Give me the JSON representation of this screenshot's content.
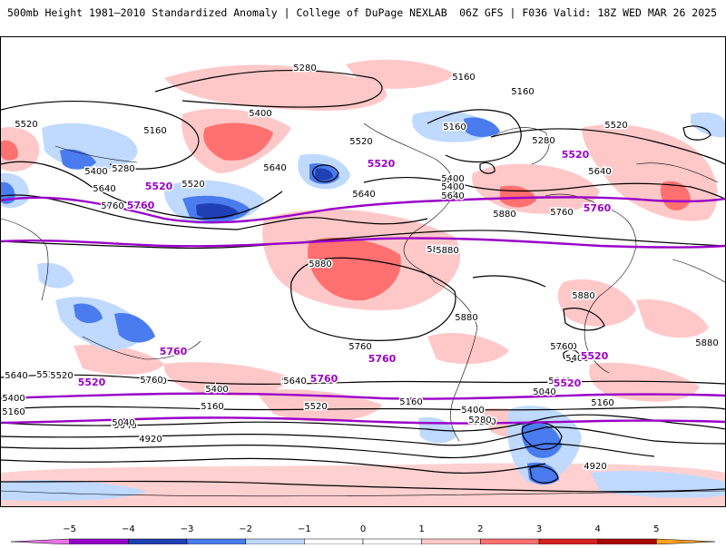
{
  "header": {
    "left": "500mb Height 1981–2010 Standardized Anomaly | College of DuPage NEXLAB",
    "right": "06Z GFS | F036 Valid: 18Z WED MAR 26 2025"
  },
  "colors": {
    "anom_neg5": "#e875e8",
    "anom_neg4": "#9400c8",
    "anom_neg3": "#1f3fb5",
    "anom_neg2": "#4a7cf0",
    "anom_neg1": "#bfd9ff",
    "anom_pos1": "#ffc8c8",
    "anom_pos2": "#ff7070",
    "anom_pos3": "#d72020",
    "anom_pos4": "#aa0000",
    "anom_pos5": "#ffa020",
    "contour": "#000000",
    "climo_contour": "#9a00c8"
  },
  "colorbar": {
    "ticks": [
      "−5",
      "−4",
      "−3",
      "−2",
      "−1",
      "0",
      "1",
      "2",
      "3",
      "4",
      "5"
    ]
  },
  "contour_labels": {
    "black": [
      "5280",
      "5160",
      "5160",
      "5520",
      "5160",
      "5400",
      "5160",
      "5520",
      "5280",
      "5400",
      "5640",
      "5520",
      "5280",
      "5400",
      "5640",
      "5760",
      "5880",
      "5760",
      "5520",
      "5640",
      "5880",
      "5880",
      "5880",
      "5880",
      "5880",
      "5880",
      "5760",
      "5640",
      "5520",
      "5400",
      "5520",
      "5640",
      "5760",
      "5760",
      "5520",
      "5400",
      "5160",
      "5280",
      "5160",
      "5040",
      "4920",
      "5040",
      "4920",
      "5160",
      "5400",
      "5280",
      "5040",
      "5160",
      "4920",
      "5640",
      "5520",
      "5400",
      "5160",
      "5640",
      "5400",
      "5640",
      "5760",
      "5640"
    ],
    "climo": [
      "5520",
      "5760",
      "5520",
      "5520",
      "5760",
      "5760",
      "5760",
      "5520",
      "5520",
      "5760",
      "5520"
    ]
  }
}
